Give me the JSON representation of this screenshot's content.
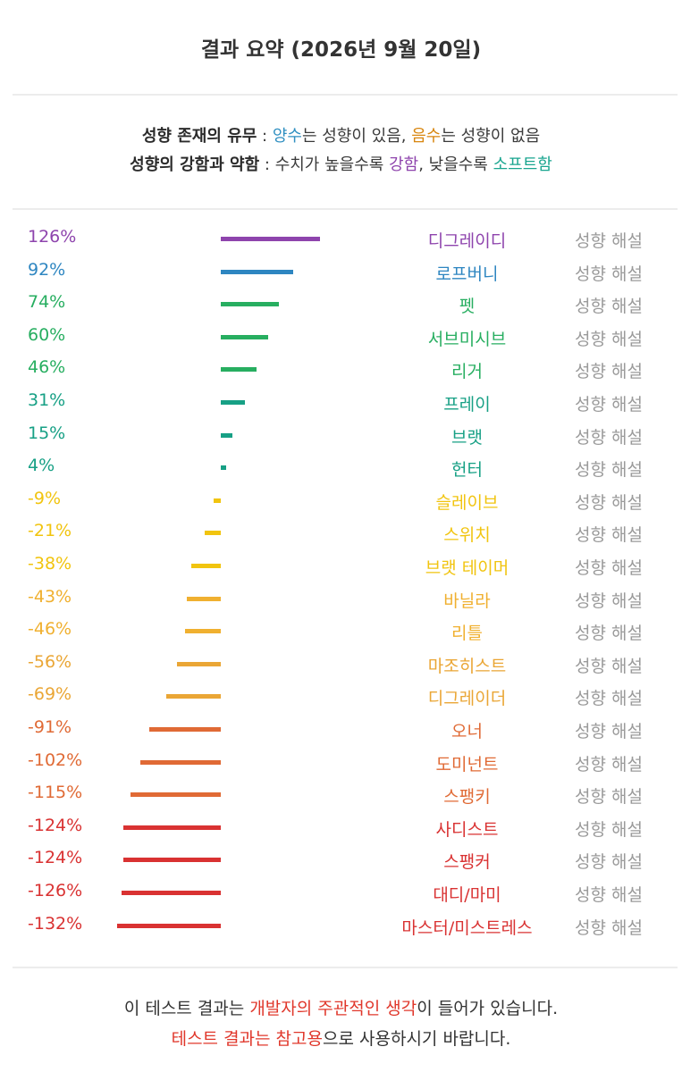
{
  "header": {
    "title": "결과 요약 (2026년 9월 20일)"
  },
  "legend": {
    "presence": {
      "label": "성향 존재의 유무",
      "sep": " : ",
      "positive_word": "양수",
      "positive_rest": "는 성향이 있음, ",
      "negative_word": "음수",
      "negative_rest": "는 성향이 없음"
    },
    "strength": {
      "label": "성향의 강함과 약함",
      "sep": " : ",
      "lead": "수치가 높을수록 ",
      "strong_word": "강함",
      "mid": ", 낮을수록 ",
      "soft_word": "소프트함"
    },
    "colors": {
      "positive": "#2f8fc1",
      "negative": "#d8860f",
      "strong": "#8e44ad",
      "soft": "#1aa58f"
    }
  },
  "link_label": "성향 해설",
  "chart_data": {
    "type": "bar",
    "orientation": "horizontal",
    "unit": "%",
    "zero_line": true,
    "categories": [
      "디그레이디",
      "로프버니",
      "펫",
      "서브미시브",
      "리거",
      "프레이",
      "브랫",
      "헌터",
      "슬레이브",
      "스위치",
      "브랫 테이머",
      "바닐라",
      "리틀",
      "마조히스트",
      "디그레이더",
      "오너",
      "도미넌트",
      "스팽키",
      "사디스트",
      "스팽커",
      "대디/마미",
      "마스터/미스트레스"
    ],
    "values": [
      126,
      92,
      74,
      60,
      46,
      31,
      15,
      4,
      -9,
      -21,
      -38,
      -43,
      -46,
      -56,
      -69,
      -91,
      -102,
      -115,
      -124,
      -124,
      -126,
      -132
    ],
    "labels": [
      "126%",
      "92%",
      "74%",
      "60%",
      "46%",
      "31%",
      "15%",
      "4%",
      "-9%",
      "-21%",
      "-38%",
      "-43%",
      "-46%",
      "-56%",
      "-69%",
      "-91%",
      "-102%",
      "-115%",
      "-124%",
      "-124%",
      "-126%",
      "-132%"
    ],
    "colors": [
      "#8e44ad",
      "#2e86c1",
      "#27ae60",
      "#27ae60",
      "#27ae60",
      "#17a085",
      "#17a085",
      "#17a085",
      "#f1c40f",
      "#f1c40f",
      "#f1c40f",
      "#f0b030",
      "#f0b030",
      "#eaa635",
      "#eaa635",
      "#e06a35",
      "#e06a35",
      "#e06a35",
      "#d93232",
      "#d93232",
      "#d93232",
      "#d93232"
    ]
  },
  "footer": {
    "line1_a": "이 테스트 결과는 ",
    "line1_red": "개발자의 주관적인 생각",
    "line1_b": "이 들어가 있습니다.",
    "line2_red": "테스트 결과는 참고용",
    "line2_b": "으로 사용하시기 바랍니다.",
    "accent": "#e0372b"
  }
}
